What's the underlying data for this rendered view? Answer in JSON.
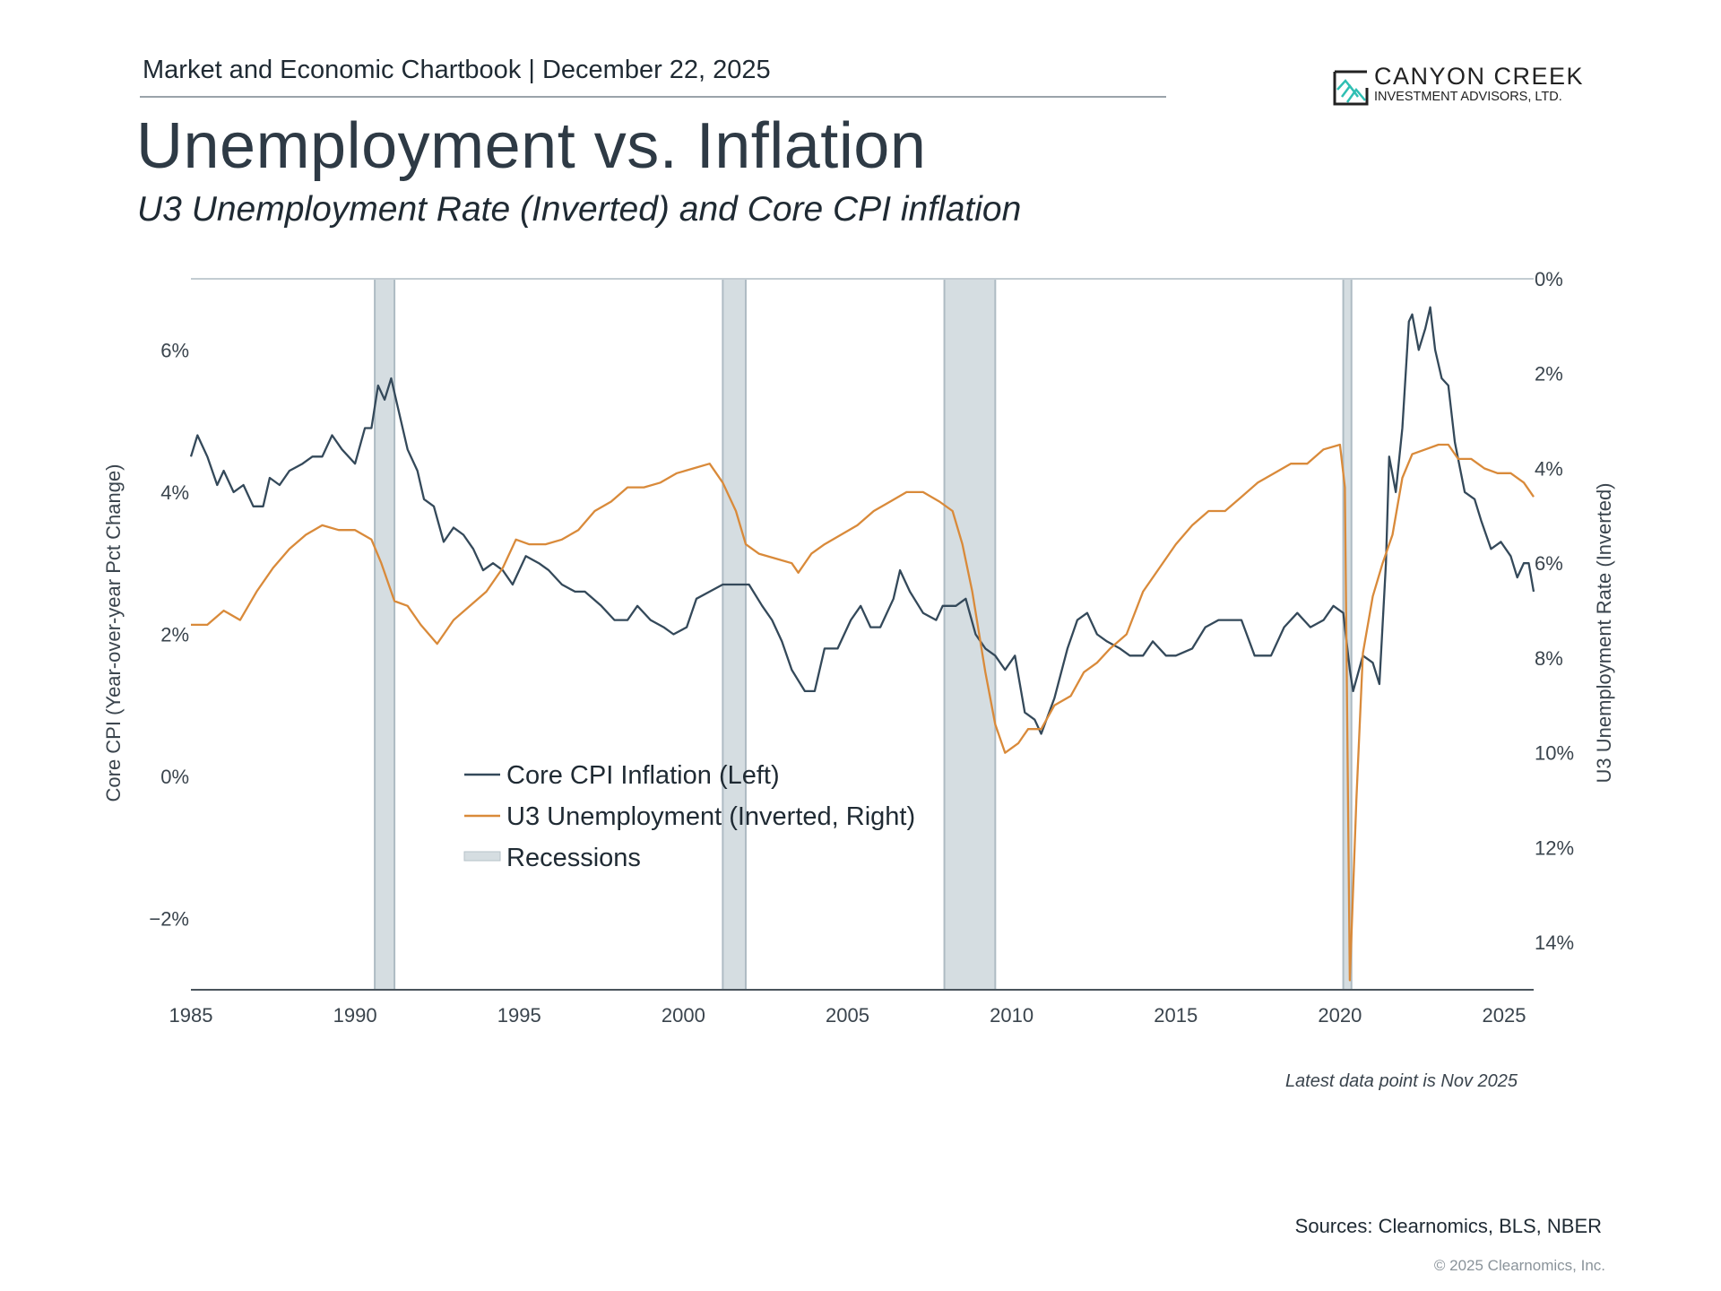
{
  "header": {
    "chartbook": "Market and Economic Chartbook | December 22, 2025",
    "title": "Unemployment vs. Inflation",
    "subtitle": "U3 Unemployment Rate (Inverted) and Core CPI inflation"
  },
  "logo": {
    "line1": "CANYON CREEK",
    "line2": "INVESTMENT ADVISORS, LTD.",
    "color": "#2fbfb3"
  },
  "footer": {
    "note": "Latest data point is Nov 2025",
    "sources": "Sources: Clearnomics, BLS, NBER",
    "copyright": "© 2025 Clearnomics, Inc."
  },
  "chart_data": {
    "type": "line",
    "title": "",
    "xlabel": "",
    "ylabel": "Core CPI (Year-over-year Pct Change)",
    "y2label": "U3 Unemployment Rate (Inverted)",
    "xlim": [
      1985,
      2025.9
    ],
    "ylim": [
      -3,
      7
    ],
    "y2lim": [
      0,
      15
    ],
    "y2_inverted": true,
    "grid": false,
    "legend_placement": "center",
    "x_ticks": [
      "1985",
      "1990",
      "1995",
      "2000",
      "2005",
      "2010",
      "2015",
      "2020",
      "2025"
    ],
    "y_ticks": [
      "6%",
      "4%",
      "2%",
      "0%",
      "−2%"
    ],
    "y_tick_values": [
      6,
      4,
      2,
      0,
      -2
    ],
    "y2_ticks": [
      "0%",
      "2%",
      "4%",
      "6%",
      "8%",
      "10%",
      "12%",
      "14%"
    ],
    "y2_tick_values": [
      0,
      2,
      4,
      6,
      8,
      10,
      12,
      14
    ],
    "recessions": [
      {
        "start": 1990.6,
        "end": 1991.2
      },
      {
        "start": 2001.2,
        "end": 2001.9
      },
      {
        "start": 2007.95,
        "end": 2009.5
      },
      {
        "start": 2020.1,
        "end": 2020.35
      }
    ],
    "recession_label": "Recessions",
    "recession_color": "#d5dde1",
    "series": [
      {
        "name": "Core CPI Inflation (Left)",
        "axis": "left",
        "color": "#34495a",
        "x": [
          1985.0,
          1985.2,
          1985.5,
          1985.8,
          1986.0,
          1986.3,
          1986.6,
          1986.9,
          1987.2,
          1987.4,
          1987.7,
          1988.0,
          1988.4,
          1988.7,
          1989.0,
          1989.3,
          1989.6,
          1990.0,
          1990.3,
          1990.5,
          1990.7,
          1990.9,
          1991.1,
          1991.3,
          1991.6,
          1991.9,
          1992.1,
          1992.4,
          1992.7,
          1993.0,
          1993.3,
          1993.6,
          1993.9,
          1994.2,
          1994.5,
          1994.8,
          1995.2,
          1995.6,
          1995.9,
          1996.3,
          1996.7,
          1997.0,
          1997.5,
          1997.9,
          1998.3,
          1998.6,
          1999.0,
          1999.4,
          1999.7,
          2000.1,
          2000.4,
          2000.8,
          2001.2,
          2001.6,
          2002.0,
          2002.4,
          2002.7,
          2003.0,
          2003.3,
          2003.7,
          2004.0,
          2004.3,
          2004.7,
          2005.1,
          2005.4,
          2005.7,
          2006.0,
          2006.4,
          2006.6,
          2006.9,
          2007.3,
          2007.7,
          2007.9,
          2008.3,
          2008.6,
          2008.9,
          2009.2,
          2009.5,
          2009.8,
          2010.1,
          2010.4,
          2010.7,
          2010.9,
          2011.3,
          2011.7,
          2012.0,
          2012.3,
          2012.6,
          2012.9,
          2013.3,
          2013.6,
          2014.0,
          2014.3,
          2014.7,
          2015.0,
          2015.5,
          2015.9,
          2016.3,
          2016.7,
          2017.0,
          2017.4,
          2017.9,
          2018.3,
          2018.7,
          2019.1,
          2019.5,
          2019.8,
          2020.1,
          2020.3,
          2020.4,
          2020.7,
          2021.0,
          2021.2,
          2021.4,
          2021.5,
          2021.7,
          2021.9,
          2022.1,
          2022.2,
          2022.4,
          2022.6,
          2022.75,
          2022.9,
          2023.1,
          2023.3,
          2023.5,
          2023.8,
          2024.1,
          2024.3,
          2024.6,
          2024.9,
          2025.2,
          2025.4,
          2025.6,
          2025.75,
          2025.9
        ],
        "y": [
          4.5,
          4.8,
          4.5,
          4.1,
          4.3,
          4.0,
          4.1,
          3.8,
          3.8,
          4.2,
          4.1,
          4.3,
          4.4,
          4.5,
          4.5,
          4.8,
          4.6,
          4.4,
          4.9,
          4.9,
          5.5,
          5.3,
          5.6,
          5.2,
          4.6,
          4.3,
          3.9,
          3.8,
          3.3,
          3.5,
          3.4,
          3.2,
          2.9,
          3.0,
          2.9,
          2.7,
          3.1,
          3.0,
          2.9,
          2.7,
          2.6,
          2.6,
          2.4,
          2.2,
          2.2,
          2.4,
          2.2,
          2.1,
          2.0,
          2.1,
          2.5,
          2.6,
          2.7,
          2.7,
          2.7,
          2.4,
          2.2,
          1.9,
          1.5,
          1.2,
          1.2,
          1.8,
          1.8,
          2.2,
          2.4,
          2.1,
          2.1,
          2.5,
          2.9,
          2.6,
          2.3,
          2.2,
          2.4,
          2.4,
          2.5,
          2.0,
          1.8,
          1.7,
          1.5,
          1.7,
          0.9,
          0.8,
          0.6,
          1.1,
          1.8,
          2.2,
          2.3,
          2.0,
          1.9,
          1.8,
          1.7,
          1.7,
          1.9,
          1.7,
          1.7,
          1.8,
          2.1,
          2.2,
          2.2,
          2.2,
          1.7,
          1.7,
          2.1,
          2.3,
          2.1,
          2.2,
          2.4,
          2.3,
          1.5,
          1.2,
          1.7,
          1.6,
          1.3,
          3.0,
          4.5,
          4.0,
          4.9,
          6.4,
          6.5,
          6.0,
          6.3,
          6.6,
          6.0,
          5.6,
          5.5,
          4.7,
          4.0,
          3.9,
          3.6,
          3.2,
          3.3,
          3.1,
          2.8,
          3.0,
          3.0,
          2.6
        ]
      },
      {
        "name": "U3 Unemployment (Inverted, Right)",
        "axis": "right",
        "color": "#d98a3a",
        "x": [
          1985.0,
          1985.5,
          1986.0,
          1986.5,
          1987.0,
          1987.5,
          1988.0,
          1988.5,
          1989.0,
          1989.5,
          1990.0,
          1990.5,
          1990.8,
          1991.2,
          1991.6,
          1992.0,
          1992.5,
          1993.0,
          1993.5,
          1994.0,
          1994.5,
          1994.9,
          1995.3,
          1995.8,
          1996.3,
          1996.8,
          1997.3,
          1997.8,
          1998.3,
          1998.8,
          1999.3,
          1999.8,
          2000.3,
          2000.8,
          2001.2,
          2001.6,
          2001.9,
          2002.3,
          2002.8,
          2003.3,
          2003.5,
          2003.9,
          2004.3,
          2004.8,
          2005.3,
          2005.8,
          2006.3,
          2006.8,
          2007.3,
          2007.8,
          2008.2,
          2008.5,
          2008.8,
          2009.2,
          2009.5,
          2009.8,
          2010.2,
          2010.5,
          2010.9,
          2011.3,
          2011.8,
          2012.2,
          2012.6,
          2013.0,
          2013.5,
          2014.0,
          2014.5,
          2015.0,
          2015.5,
          2016.0,
          2016.5,
          2017.0,
          2017.5,
          2018.0,
          2018.5,
          2019.0,
          2019.5,
          2020.0,
          2020.15,
          2020.3,
          2020.5,
          2020.7,
          2021.0,
          2021.3,
          2021.6,
          2021.9,
          2022.2,
          2022.6,
          2023.0,
          2023.3,
          2023.6,
          2024.0,
          2024.4,
          2024.8,
          2025.2,
          2025.6,
          2025.9
        ],
        "y": [
          7.3,
          7.3,
          7.0,
          7.2,
          6.6,
          6.1,
          5.7,
          5.4,
          5.2,
          5.3,
          5.3,
          5.5,
          6.0,
          6.8,
          6.9,
          7.3,
          7.7,
          7.2,
          6.9,
          6.6,
          6.1,
          5.5,
          5.6,
          5.6,
          5.5,
          5.3,
          4.9,
          4.7,
          4.4,
          4.4,
          4.3,
          4.1,
          4.0,
          3.9,
          4.3,
          4.9,
          5.6,
          5.8,
          5.9,
          6.0,
          6.2,
          5.8,
          5.6,
          5.4,
          5.2,
          4.9,
          4.7,
          4.5,
          4.5,
          4.7,
          4.9,
          5.6,
          6.6,
          8.3,
          9.4,
          10.0,
          9.8,
          9.5,
          9.5,
          9.0,
          8.8,
          8.3,
          8.1,
          7.8,
          7.5,
          6.6,
          6.1,
          5.6,
          5.2,
          4.9,
          4.9,
          4.6,
          4.3,
          4.1,
          3.9,
          3.9,
          3.6,
          3.5,
          4.4,
          14.8,
          11.0,
          7.9,
          6.7,
          6.0,
          5.4,
          4.2,
          3.7,
          3.6,
          3.5,
          3.5,
          3.8,
          3.8,
          4.0,
          4.1,
          4.1,
          4.3,
          4.6
        ]
      }
    ]
  }
}
